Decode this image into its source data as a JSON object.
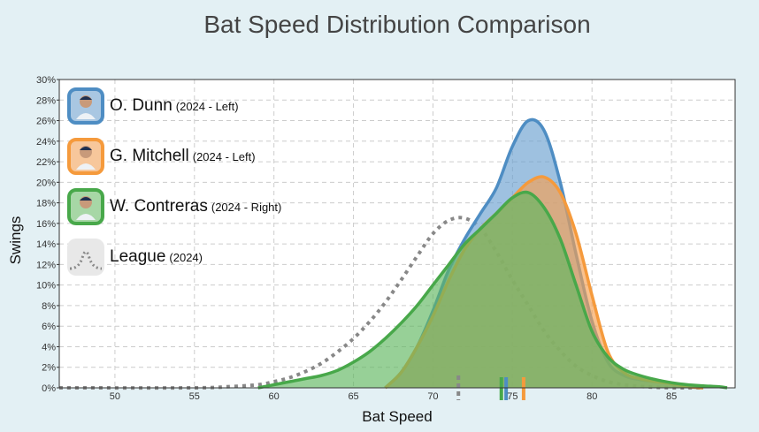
{
  "chart_data": {
    "type": "area",
    "title": "Bat Speed Distribution Comparison",
    "xlabel": "Bat Speed",
    "ylabel": "Swings",
    "xlim": [
      46.5,
      89
    ],
    "ylim": [
      0,
      30
    ],
    "xticks": [
      50,
      55,
      60,
      65,
      70,
      75,
      80,
      85
    ],
    "yticks": [
      0,
      2,
      4,
      6,
      8,
      10,
      12,
      14,
      16,
      18,
      20,
      22,
      24,
      26,
      28,
      30
    ],
    "ytick_suffix": "%",
    "grid": true,
    "series": [
      {
        "name": "O. Dunn",
        "sub": "(2024 - Left)",
        "color": "#4e8dc3",
        "fill": "#6a9fd0",
        "style": "area",
        "x": [
          67,
          68,
          69,
          70,
          71,
          72,
          73,
          74,
          75,
          76,
          77,
          78,
          79,
          80,
          81,
          82,
          83,
          84,
          85,
          86,
          87
        ],
        "y": [
          0,
          1.5,
          4,
          7.5,
          11.5,
          14.5,
          17,
          19.5,
          23.5,
          26,
          25,
          20,
          13,
          6.5,
          2.5,
          1.2,
          0.8,
          0.6,
          0.4,
          0.1,
          0
        ],
        "mean": 74.6
      },
      {
        "name": "G. Mitchell",
        "sub": "(2024 - Left)",
        "color": "#f59a3c",
        "fill": "#f6a052",
        "style": "area",
        "x": [
          67,
          68,
          69,
          70,
          71,
          72,
          73,
          74,
          75,
          76,
          77,
          78,
          79,
          80,
          81,
          82,
          83,
          84,
          85,
          86,
          87
        ],
        "y": [
          0,
          1.5,
          4,
          7,
          10.5,
          13.5,
          15.5,
          17,
          18.5,
          20,
          20.5,
          19,
          15,
          9,
          3.5,
          1.5,
          0.9,
          0.6,
          0.4,
          0.1,
          0
        ],
        "mean": 75.7
      },
      {
        "name": "W. Contreras",
        "sub": "(2024 - Right)",
        "color": "#48a84a",
        "fill": "#5fb760",
        "style": "area",
        "x": [
          59,
          60,
          61,
          62,
          63,
          64,
          65,
          66,
          67,
          68,
          69,
          70,
          71,
          72,
          73,
          74,
          75,
          76,
          77,
          78,
          79,
          80,
          81,
          82,
          83,
          84,
          85,
          86,
          87,
          88,
          88.5
        ],
        "y": [
          0,
          0.3,
          0.6,
          0.9,
          1.2,
          1.7,
          2.5,
          3.5,
          4.8,
          6.3,
          8,
          10,
          12,
          14,
          15.5,
          17,
          18.5,
          19,
          17.5,
          14.5,
          10,
          5.5,
          3,
          1.8,
          1.2,
          0.8,
          0.5,
          0.3,
          0.2,
          0.1,
          0
        ],
        "mean": 74.3
      },
      {
        "name": "League",
        "sub": "(2024)",
        "color": "#888888",
        "style": "dotted",
        "x": [
          46.5,
          55,
          57,
          59,
          60,
          61,
          62,
          63,
          64,
          65,
          66,
          67,
          68,
          69,
          70,
          71,
          72,
          73,
          74,
          75,
          76,
          77,
          78,
          79,
          80,
          81,
          82,
          83,
          84,
          85,
          86,
          87
        ],
        "y": [
          0,
          0,
          0.1,
          0.3,
          0.6,
          1,
          1.6,
          2.4,
          3.5,
          4.8,
          6.4,
          8.3,
          10.5,
          12.8,
          15,
          16.3,
          16.5,
          15.5,
          13.2,
          10.5,
          8,
          5.5,
          3.6,
          2.1,
          1.2,
          0.6,
          0.3,
          0.15,
          0.05,
          0,
          0,
          0
        ],
        "mean": 71.6
      }
    ]
  }
}
